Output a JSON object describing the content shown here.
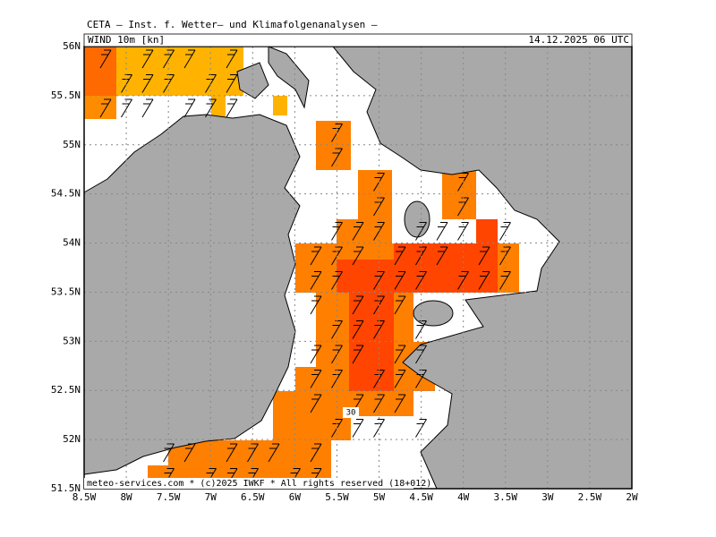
{
  "header": "CETA — Inst. f. Wetter— und Klimafolgenanalysen —",
  "field_label": "WIND 10m [kn]",
  "datetime": "14.12.2025 06 UTC",
  "lat_labels": [
    "56N",
    "55.5N",
    "55N",
    "54.5N",
    "54N",
    "53.5N",
    "53N",
    "52.5N",
    "52N",
    "51.5N"
  ],
  "lon_labels": [
    "8.5W",
    "8W",
    "7.5W",
    "7W",
    "6.5W",
    "6W",
    "5.5W",
    "5W",
    "4.5W",
    "4W",
    "3.5W",
    "3W",
    "2.5W",
    "2W"
  ],
  "contour_label": "30",
  "footer": "meteo-services.com * (c)2025 IWKF * All rights reserved (18+012)"
}
